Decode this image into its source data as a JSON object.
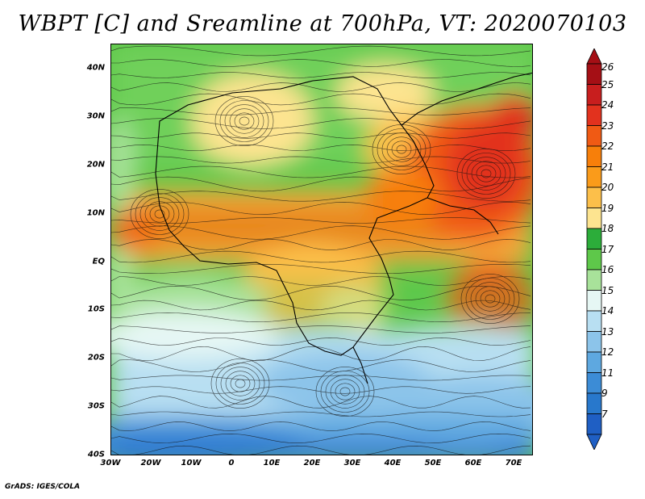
{
  "title": "WBPT [C] and Sreamline at 700hPa, VT: 2020070103",
  "footer": "GrADS: IGES/COLA",
  "axes": {
    "lat_labels": [
      "40N",
      "30N",
      "20N",
      "10N",
      "EQ",
      "10S",
      "20S",
      "30S",
      "40S"
    ],
    "lon_labels": [
      "30W",
      "20W",
      "10W",
      "0",
      "10E",
      "20E",
      "30E",
      "40E",
      "50E",
      "60E",
      "70E"
    ]
  },
  "colorbar": {
    "labels": [
      "26",
      "25",
      "24",
      "23",
      "22",
      "21",
      "20",
      "19",
      "18",
      "17",
      "16",
      "15",
      "14",
      "13",
      "12",
      "11",
      "9",
      "7"
    ],
    "colors": [
      "#a50f15",
      "#c81e1e",
      "#e2321e",
      "#f05a14",
      "#f77f0a",
      "#fa9b1a",
      "#fcbf4a",
      "#fde490",
      "#2cad3a",
      "#5ec84a",
      "#a8e29a",
      "#e6f7f4",
      "#b8dff2",
      "#8cc4ea",
      "#5ea8e0",
      "#3c8cd6",
      "#2878cc",
      "#1f5fc4"
    ]
  }
}
